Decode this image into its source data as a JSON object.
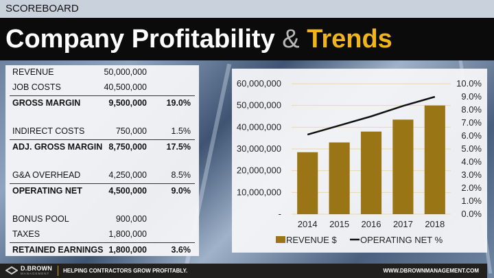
{
  "header": {
    "section": "SCOREBOARD",
    "title_part1": "Company Profitability",
    "title_amp": "&",
    "title_part2": "Trends"
  },
  "table": {
    "rows": [
      {
        "label": "REVENUE",
        "value": "50,000,000",
        "pct": "",
        "bold": false
      },
      {
        "label": "JOB COSTS",
        "value": "40,500,000",
        "pct": "",
        "bold": false
      },
      {
        "label": "GROSS MARGIN",
        "value": "9,500,000",
        "pct": "19.0%",
        "bold": true
      },
      {
        "label": "INDIRECT COSTS",
        "value": "750,000",
        "pct": "1.5%",
        "bold": false,
        "gap": true
      },
      {
        "label": "ADJ. GROSS MARGIN",
        "value": "8,750,000",
        "pct": "17.5%",
        "bold": true
      },
      {
        "label": "G&A OVERHEAD",
        "value": "4,250,000",
        "pct": "8.5%",
        "bold": false,
        "gap": true
      },
      {
        "label": "OPERATING NET",
        "value": "4,500,000",
        "pct": "9.0%",
        "bold": true
      },
      {
        "label": "BONUS POOL",
        "value": "900,000",
        "pct": "",
        "bold": false,
        "gap": true
      },
      {
        "label": "TAXES",
        "value": "1,800,000",
        "pct": "",
        "bold": false
      },
      {
        "label": "RETAINED EARNINGS",
        "value": "1,800,000",
        "pct": "3.6%",
        "bold": true
      }
    ]
  },
  "chart_data": {
    "type": "bar",
    "categories": [
      "2014",
      "2015",
      "2016",
      "2017",
      "2018"
    ],
    "series": [
      {
        "name": "REVENUE $",
        "type": "bar",
        "axis": "left",
        "color": "#9a7516",
        "values": [
          28500000,
          33000000,
          38000000,
          43500000,
          50000000
        ]
      },
      {
        "name": "OPERATING NET %",
        "type": "line",
        "axis": "right",
        "color": "#111111",
        "values": [
          6.1,
          6.8,
          7.5,
          8.3,
          9.0
        ]
      }
    ],
    "left_ticks": [
      "-",
      "10,000,000",
      "20,000,000",
      "30,000,000",
      "40,000,000",
      "50,000,000",
      "60,000,000"
    ],
    "right_ticks": [
      "0.0%",
      "1.0%",
      "2.0%",
      "3.0%",
      "4.0%",
      "5.0%",
      "6.0%",
      "7.0%",
      "8.0%",
      "9.0%",
      "10.0%"
    ],
    "ylim_left": [
      0,
      60000000
    ],
    "ylim_right": [
      0,
      10
    ],
    "grid": true,
    "legend": "bottom"
  },
  "footer": {
    "brand": "D.BROWN",
    "brand_sub": "MANAGEMENT",
    "tagline": "HELPING CONTRACTORS GROW PROFITABLY.",
    "url": "WWW.DBROWNMANAGEMENT.COM"
  }
}
